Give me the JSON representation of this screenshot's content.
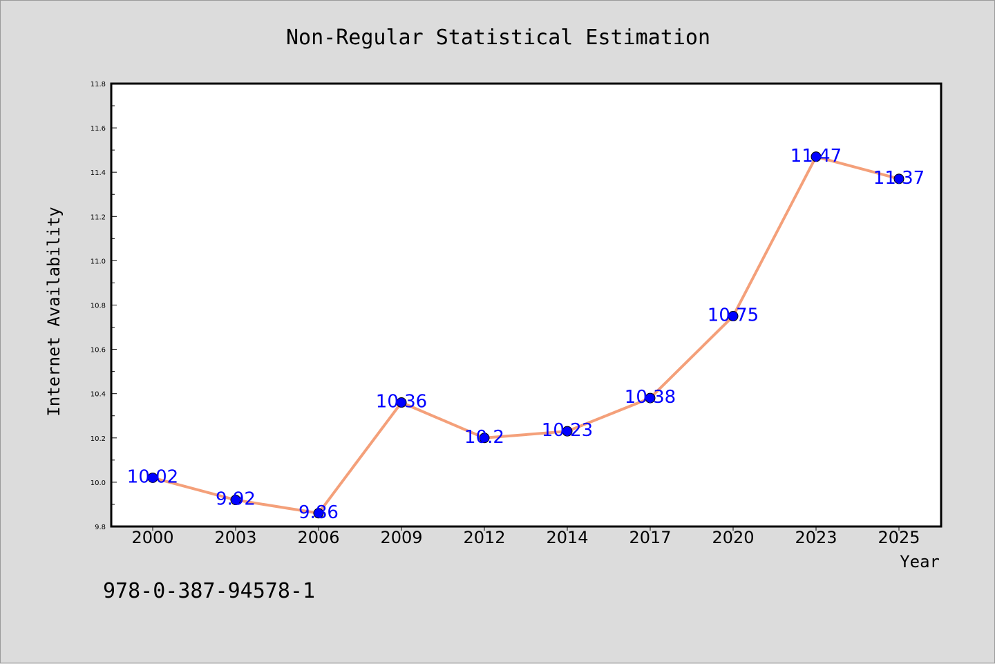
{
  "chart_data": {
    "type": "line",
    "title": "Non-Regular Statistical Estimation",
    "xlabel": "Year",
    "ylabel": "Internet Availability",
    "categories": [
      "2000",
      "2003",
      "2006",
      "2009",
      "2012",
      "2014",
      "2017",
      "2020",
      "2023",
      "2025"
    ],
    "series": [
      {
        "values": [
          10.02,
          9.92,
          9.86,
          10.36,
          10.2,
          10.23,
          10.38,
          10.75,
          11.47,
          11.37
        ],
        "labels": [
          "10.02",
          "9.92",
          "9.86",
          "10.36",
          "10.2",
          "10.23",
          "10.38",
          "10.75",
          "11.47",
          "11.37"
        ]
      }
    ],
    "ylim": [
      9.8,
      11.8
    ],
    "yticks": [
      "9.8",
      "10.0",
      "10.2",
      "10.4",
      "10.6",
      "10.8",
      "11.0",
      "11.2",
      "11.4",
      "11.6",
      "11.8"
    ],
    "grid": false,
    "line_color": "#f4a07a",
    "marker_color": "#0000ff",
    "label_color": "#0000ff"
  },
  "annotation": "978-0-387-94578-1"
}
